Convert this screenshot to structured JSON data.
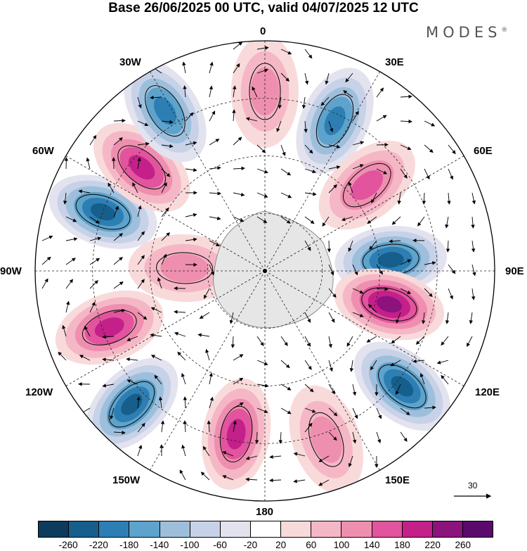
{
  "title": "Base 26/06/2025 00 UTC, valid 04/07/2025 12 UTC",
  "brand": "MODES",
  "brand_mark": "®",
  "longitude_labels": [
    "0",
    "30E",
    "60E",
    "90E",
    "120E",
    "150E",
    "180",
    "150W",
    "120W",
    "90W",
    "60W",
    "30W"
  ],
  "vector_reference": {
    "label": "30"
  },
  "colorbar": {
    "ticks": [
      "-260",
      "-220",
      "-180",
      "-140",
      "-100",
      "-60",
      "-20",
      "20",
      "60",
      "100",
      "140",
      "180",
      "220",
      "260"
    ],
    "colors": [
      "#0d3b5c",
      "#165f8c",
      "#2d7fb3",
      "#5ea3cc",
      "#9dbfdc",
      "#c7d2e8",
      "#e3e3ef",
      "#ffffff",
      "#f9dada",
      "#f5b7c6",
      "#ef8fb0",
      "#e2549d",
      "#c3208a",
      "#8c127e",
      "#5a0a6b"
    ]
  },
  "anomaly_centers": [
    {
      "lon": 0,
      "lat_ring": 0.78,
      "value": 120
    },
    {
      "lon": 25,
      "lat_ring": 0.72,
      "value": -200
    },
    {
      "lon": 50,
      "lat_ring": 0.58,
      "value": 180
    },
    {
      "lon": 85,
      "lat_ring": 0.55,
      "value": -230
    },
    {
      "lon": 105,
      "lat_ring": 0.56,
      "value": 230
    },
    {
      "lon": 130,
      "lat_ring": 0.78,
      "value": -240
    },
    {
      "lon": 160,
      "lat_ring": 0.78,
      "value": 120
    },
    {
      "lon": 190,
      "lat_ring": 0.72,
      "value": 200
    },
    {
      "lon": 225,
      "lat_ring": 0.82,
      "value": -240
    },
    {
      "lon": 250,
      "lat_ring": 0.72,
      "value": 220
    },
    {
      "lon": 272,
      "lat_ring": 0.35,
      "value": 110
    },
    {
      "lon": 290,
      "lat_ring": 0.75,
      "value": -250
    },
    {
      "lon": 310,
      "lat_ring": 0.7,
      "value": 220
    },
    {
      "lon": 328,
      "lat_ring": 0.82,
      "value": -200
    }
  ]
}
